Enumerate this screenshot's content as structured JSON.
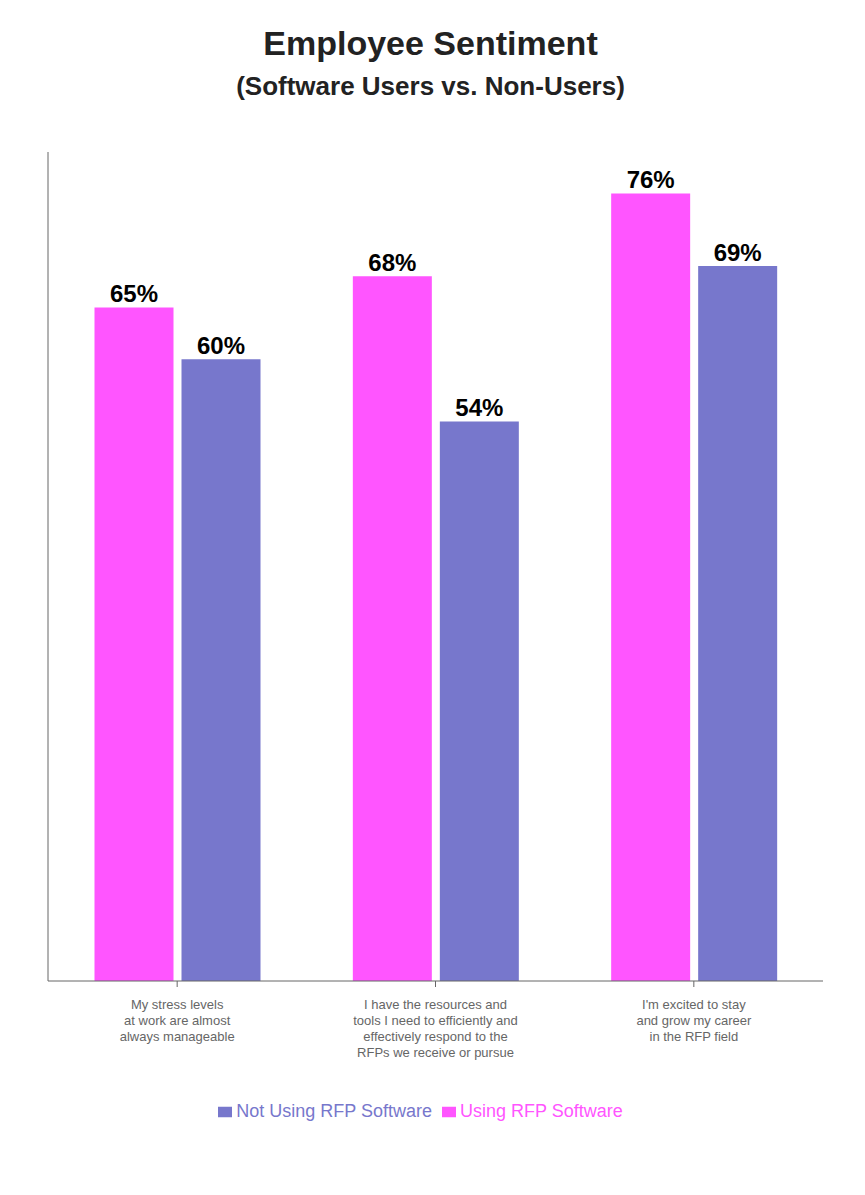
{
  "chart_data": {
    "type": "bar",
    "title": "Employee Sentiment",
    "subtitle": "(Software Users vs. Non-Users)",
    "categories": [
      "My stress levels\nat work are almost\nalways manageable",
      "I have the resources and\ntools I need to efficiently and\neffectively respond to the\nRFPs we receive or pursue",
      "I'm excited to stay\nand grow my career\nin the RFP field"
    ],
    "series": [
      {
        "name": "Using RFP Software",
        "color": "#ff55ff",
        "values": [
          65,
          68,
          76
        ],
        "value_labels": [
          "65%",
          "68%",
          "76%"
        ]
      },
      {
        "name": "Not Using RFP Software",
        "color": "#7777cc",
        "values": [
          60,
          54,
          69
        ],
        "value_labels": [
          "60%",
          "54%",
          "69%"
        ]
      }
    ],
    "ylim": [
      0,
      80
    ],
    "tick_labels": "x",
    "grid": false,
    "legend": "bottom",
    "data_labels": true
  }
}
